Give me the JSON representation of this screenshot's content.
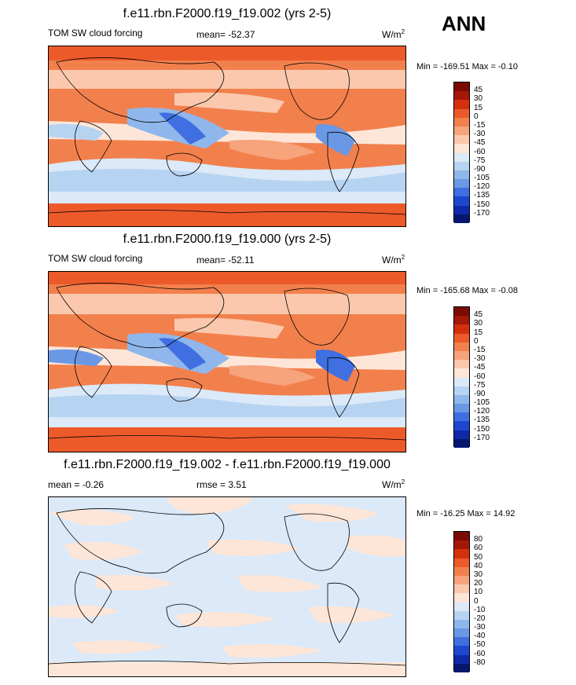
{
  "ann_label": "ANN",
  "panels": [
    {
      "title": "f.e11.rbn.F2000.f19_f19.002 (yrs 2-5)",
      "left_label": "TOM SW cloud forcing",
      "center_label": "mean= -52.37",
      "units": "W/m",
      "units_sup": "2",
      "minmax": "Min = -169.51 Max =  -0.10",
      "colorbar": {
        "labels": [
          "45",
          "30",
          "15",
          "0",
          "-15",
          "-30",
          "-45",
          "-60",
          "-75",
          "-90",
          "-105",
          "-120",
          "-135",
          "-150",
          "-170"
        ],
        "colors": [
          "#7a0a04",
          "#a51708",
          "#d4300e",
          "#ed5a2a",
          "#f2804d",
          "#f7a37c",
          "#fbc8ad",
          "#fde6d8",
          "#dbe9f8",
          "#b7d3f2",
          "#8fb7ec",
          "#6a98e5",
          "#3f6fe0",
          "#1e47cf",
          "#0f2aa8",
          "#07166e"
        ]
      }
    },
    {
      "title": "f.e11.rbn.F2000.f19_f19.000 (yrs 2-5)",
      "left_label": "TOM SW cloud forcing",
      "center_label": "mean= -52.11",
      "units": "W/m",
      "units_sup": "2",
      "minmax": "Min = -165.68 Max =  -0.08",
      "colorbar": {
        "labels": [
          "45",
          "30",
          "15",
          "0",
          "-15",
          "-30",
          "-45",
          "-60",
          "-75",
          "-90",
          "-105",
          "-120",
          "-135",
          "-150",
          "-170"
        ],
        "colors": [
          "#7a0a04",
          "#a51708",
          "#d4300e",
          "#ed5a2a",
          "#f2804d",
          "#f7a37c",
          "#fbc8ad",
          "#fde6d8",
          "#dbe9f8",
          "#b7d3f2",
          "#8fb7ec",
          "#6a98e5",
          "#3f6fe0",
          "#1e47cf",
          "#0f2aa8",
          "#07166e"
        ]
      }
    },
    {
      "title": "f.e11.rbn.F2000.f19_f19.002 - f.e11.rbn.F2000.f19_f19.000",
      "left_label": "mean =  -0.26",
      "center_label": "rmse =   3.51",
      "units": "W/m",
      "units_sup": "2",
      "minmax": "Min = -16.25 Max =  14.92",
      "colorbar": {
        "labels": [
          "80",
          "60",
          "50",
          "40",
          "30",
          "20",
          "10",
          "0",
          "-10",
          "-20",
          "-30",
          "-40",
          "-50",
          "-60",
          "-80"
        ],
        "colors": [
          "#7a0a04",
          "#a51708",
          "#d4300e",
          "#ed5a2a",
          "#f2804d",
          "#f7a37c",
          "#fbc8ad",
          "#fde6d8",
          "#dbe9f8",
          "#b7d3f2",
          "#8fb7ec",
          "#6a98e5",
          "#3f6fe0",
          "#1e47cf",
          "#0f2aa8",
          "#07166e"
        ]
      }
    }
  ]
}
